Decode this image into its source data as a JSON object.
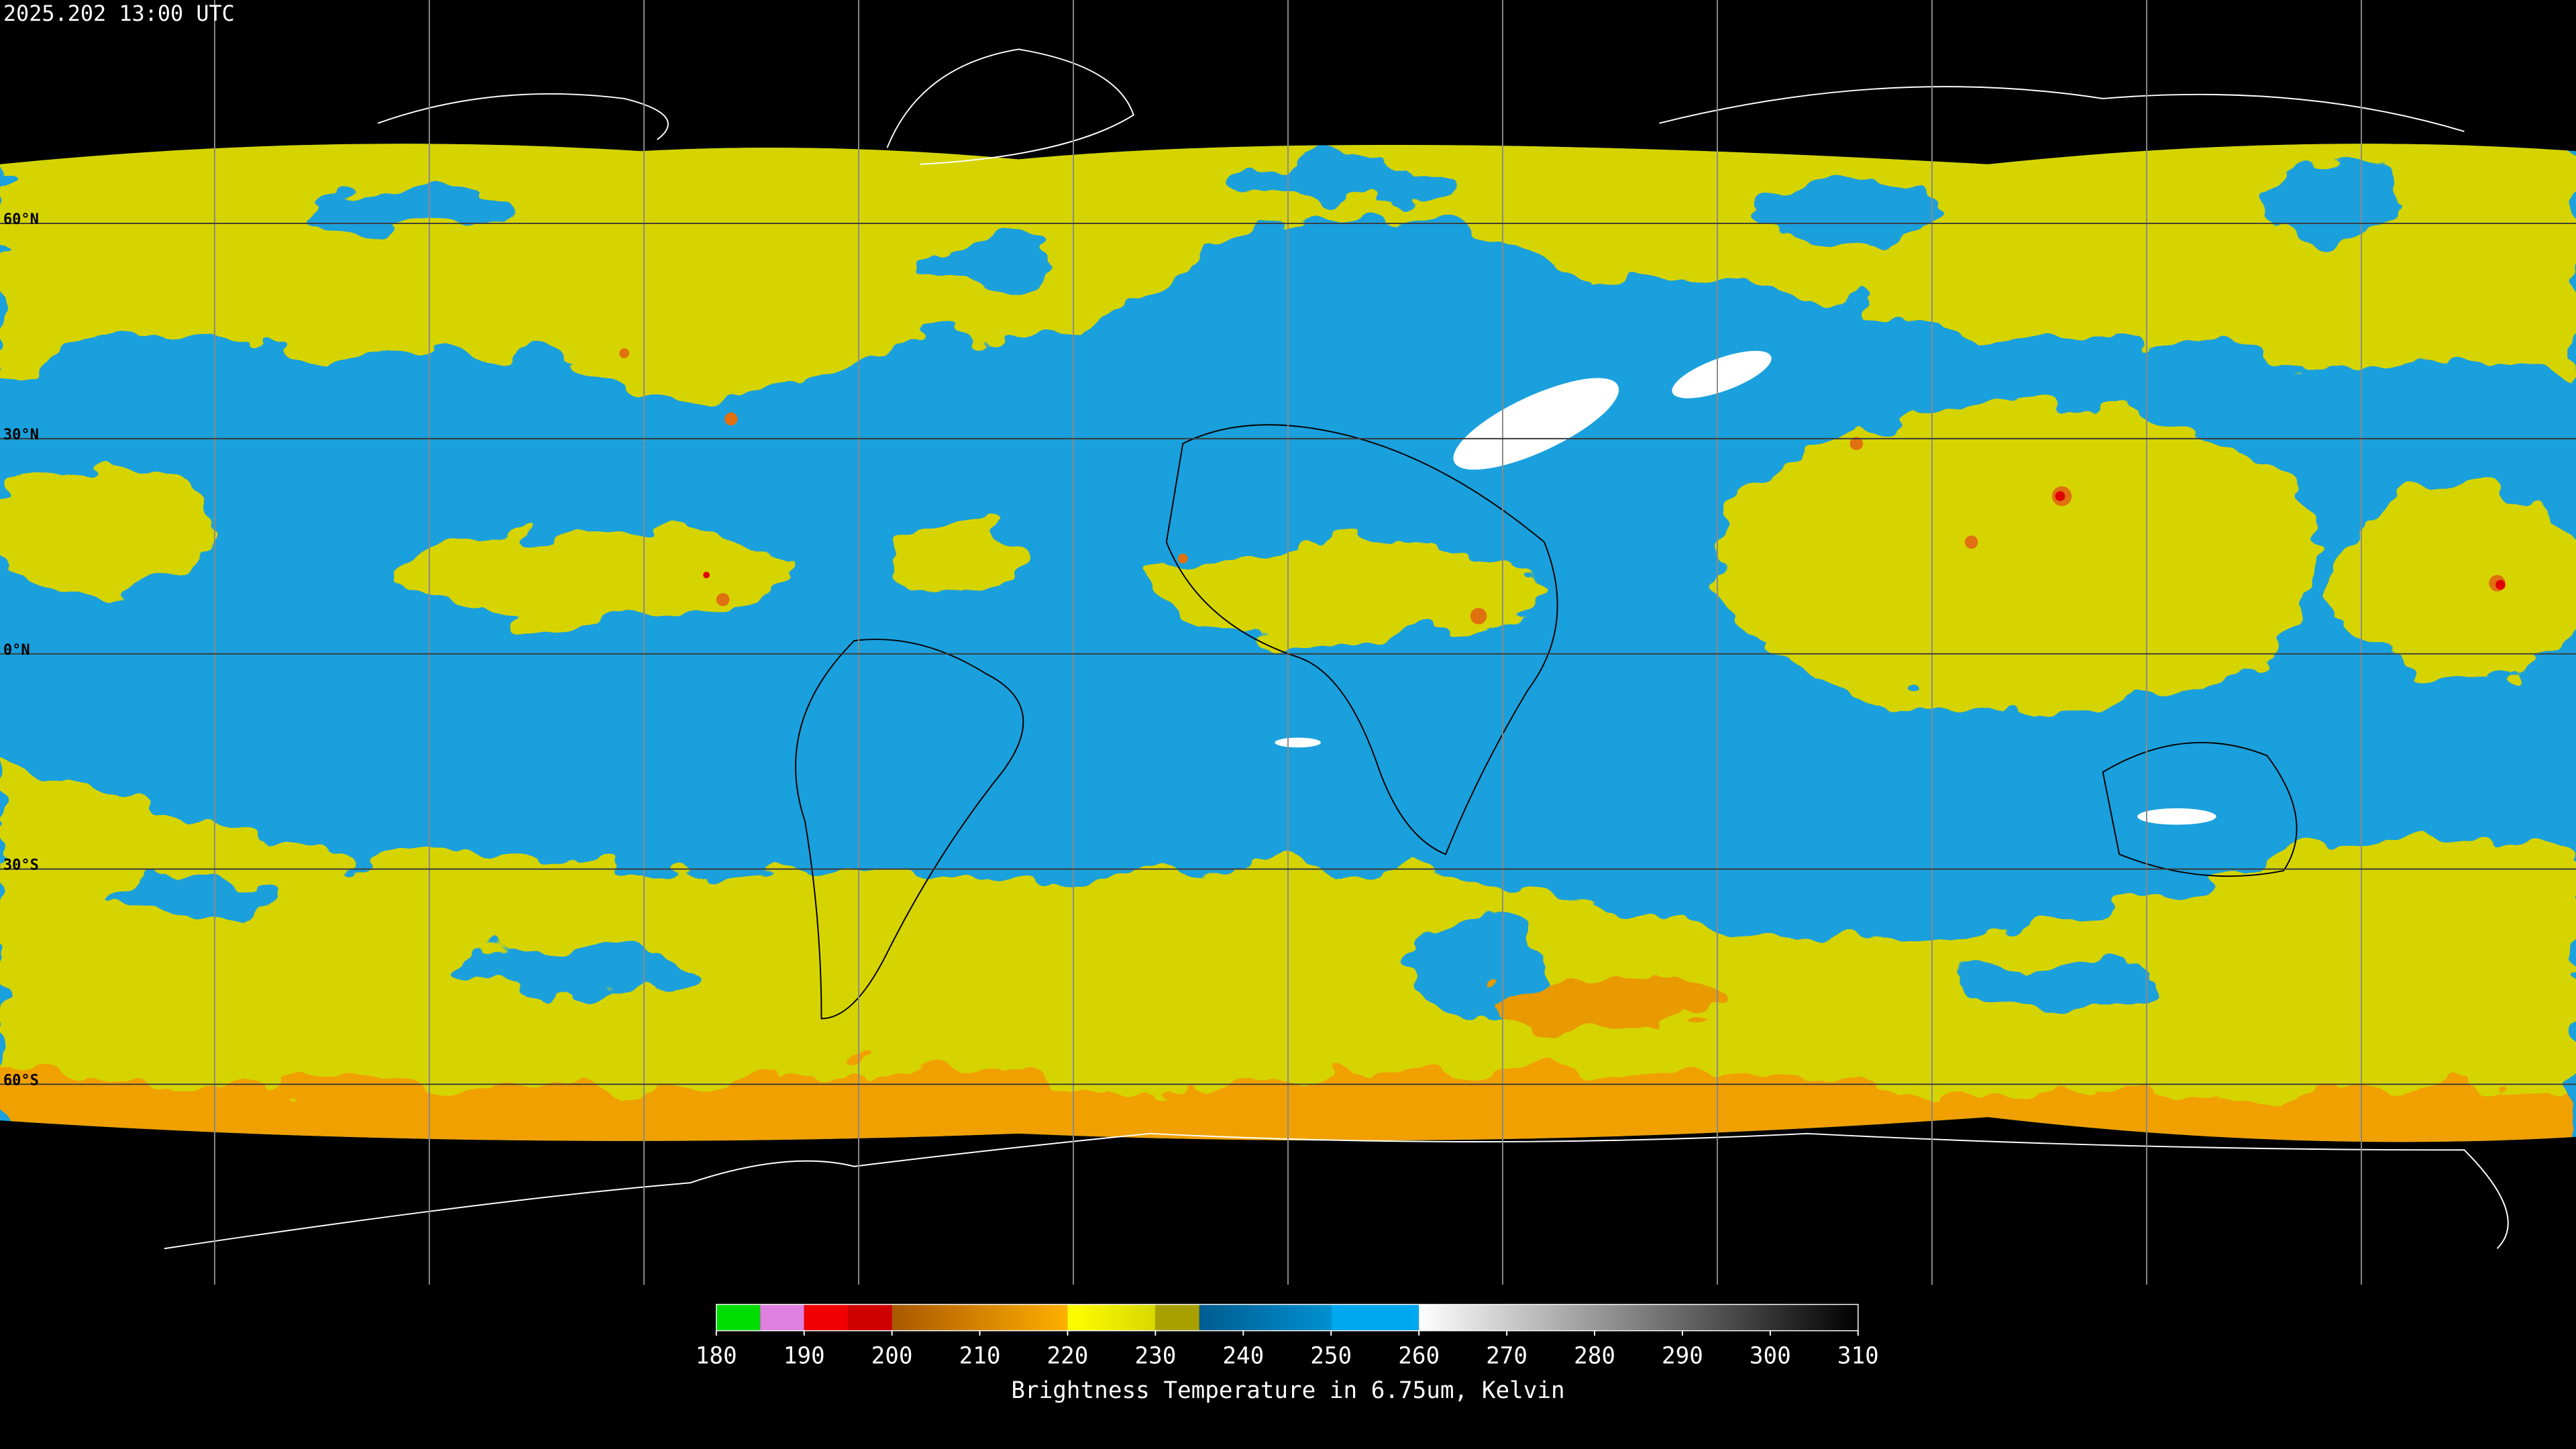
{
  "header": {
    "title": "2025.202 13:00 UTC"
  },
  "map": {
    "lat_lines": [
      {
        "value": 60,
        "label": "60°N"
      },
      {
        "value": 30,
        "label": "30°N"
      },
      {
        "value": 0,
        "label": "0°N"
      },
      {
        "value": -30,
        "label": "30°S"
      },
      {
        "value": -60,
        "label": "60°S"
      }
    ],
    "lon_lines": [
      -150,
      -120,
      -90,
      -60,
      -30,
      0,
      30,
      60,
      90,
      120,
      150
    ]
  },
  "colorbar": {
    "label": "Brightness Temperature in 6.75um, Kelvin",
    "range": [
      180,
      310
    ],
    "ticks": [
      180,
      190,
      200,
      210,
      220,
      230,
      240,
      250,
      260,
      270,
      280,
      290,
      300,
      310
    ],
    "segments": [
      {
        "from": 180,
        "to": 185,
        "colors": [
          "#00dd00",
          "#00dd00"
        ]
      },
      {
        "from": 185,
        "to": 190,
        "colors": [
          "#e080e0",
          "#e080e0"
        ]
      },
      {
        "from": 190,
        "to": 195,
        "colors": [
          "#f00000",
          "#f00000"
        ]
      },
      {
        "from": 195,
        "to": 200,
        "colors": [
          "#d00000",
          "#d00000"
        ]
      },
      {
        "from": 200,
        "to": 220,
        "colors": [
          "#a85800",
          "#ffb000"
        ]
      },
      {
        "from": 220,
        "to": 230,
        "colors": [
          "#ffff00",
          "#d8d800"
        ]
      },
      {
        "from": 230,
        "to": 235,
        "colors": [
          "#a8a000",
          "#a8a000"
        ]
      },
      {
        "from": 235,
        "to": 250,
        "colors": [
          "#005c90",
          "#0090d0"
        ]
      },
      {
        "from": 250,
        "to": 260,
        "colors": [
          "#00a8f0",
          "#00a8f0"
        ]
      },
      {
        "from": 260,
        "to": 310,
        "colors": [
          "#ffffff",
          "#000000"
        ]
      }
    ]
  }
}
